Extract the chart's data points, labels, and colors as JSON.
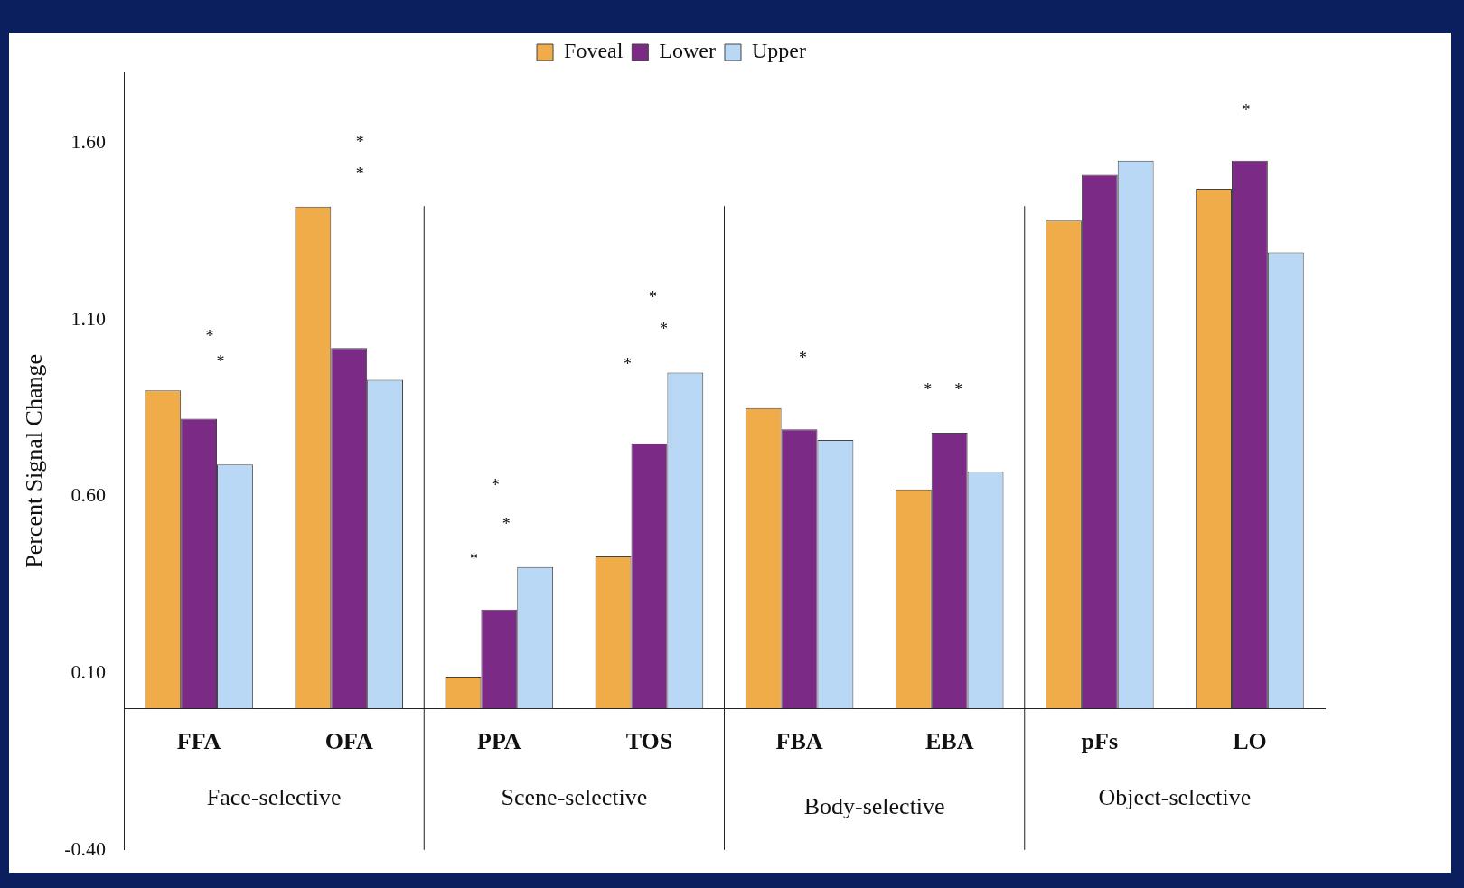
{
  "chart_data": {
    "type": "bar",
    "ylabel": "Percent Signal Change",
    "categories": [
      "FFA",
      "OFA",
      "PPA",
      "TOS",
      "FBA",
      "EBA",
      "pFs",
      "LO"
    ],
    "series": [
      {
        "name": "Foveal",
        "color": "#f0ac48",
        "values": [
          0.9,
          1.42,
          0.09,
          0.43,
          0.85,
          0.62,
          1.38,
          1.47
        ]
      },
      {
        "name": "Lower",
        "color": "#7b2a86",
        "values": [
          0.82,
          1.02,
          0.28,
          0.75,
          0.79,
          0.78,
          1.51,
          1.55
        ]
      },
      {
        "name": "Upper",
        "color": "#b8d8f5",
        "values": [
          0.69,
          0.93,
          0.4,
          0.95,
          0.76,
          0.67,
          1.55,
          1.29
        ]
      }
    ],
    "ylim": [
      -0.4,
      1.8
    ],
    "yticks": [
      {
        "value": -0.4,
        "label": "-0.40"
      },
      {
        "value": 0.1,
        "label": "0.10"
      },
      {
        "value": 0.6,
        "label": "0.60"
      },
      {
        "value": 1.1,
        "label": "1.10"
      },
      {
        "value": 1.6,
        "label": "1.60"
      }
    ],
    "legend": "top",
    "annotations": [
      "Face-selective",
      "Scene-selective",
      "Body-selective",
      "Object-selective",
      "*",
      "*",
      "*",
      "*",
      "*",
      "*",
      "*",
      "*",
      "*",
      "*",
      "*",
      "*",
      "*",
      "*"
    ]
  }
}
